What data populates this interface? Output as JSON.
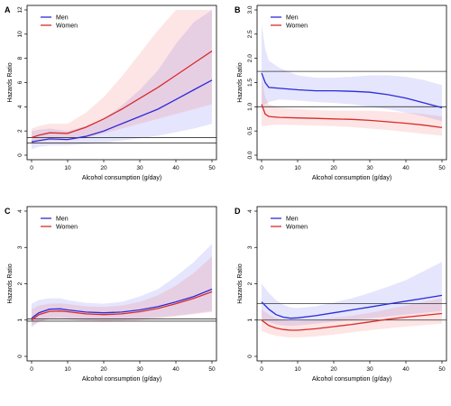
{
  "chart_data": [
    {
      "panel": "A",
      "type": "line",
      "xlabel": "Alcohol consumption (g/day)",
      "ylabel": "Hazards Ratio",
      "xlim": [
        0,
        50
      ],
      "ylim": [
        0,
        12
      ],
      "xticks": [
        0,
        10,
        20,
        30,
        40,
        50
      ],
      "yticks": [
        0,
        2,
        4,
        6,
        8,
        10,
        12
      ],
      "legend": "top-left",
      "hlines": [
        1.0,
        1.45
      ],
      "series": [
        {
          "name": "Men",
          "color": "#2b2bd9",
          "x": [
            0,
            2,
            5,
            10,
            15,
            20,
            25,
            30,
            35,
            40,
            45,
            50
          ],
          "y": [
            1.1,
            1.2,
            1.35,
            1.3,
            1.55,
            2.0,
            2.6,
            3.2,
            3.8,
            4.6,
            5.4,
            6.2
          ],
          "lower": [
            0.5,
            0.7,
            0.8,
            0.8,
            0.9,
            1.0,
            1.2,
            1.4,
            1.6,
            1.9,
            2.2,
            2.6
          ],
          "upper": [
            2.0,
            2.1,
            2.2,
            2.0,
            2.4,
            3.0,
            4.1,
            5.4,
            7.0,
            9.2,
            11.0,
            12.0
          ]
        },
        {
          "name": "Women",
          "color": "#d92b2b",
          "x": [
            0,
            2,
            5,
            10,
            15,
            20,
            25,
            30,
            35,
            40,
            45,
            50
          ],
          "y": [
            1.45,
            1.65,
            1.85,
            1.8,
            2.3,
            3.0,
            3.8,
            4.7,
            5.6,
            6.6,
            7.6,
            8.6
          ],
          "lower": [
            0.9,
            1.1,
            1.2,
            1.2,
            1.4,
            1.8,
            2.2,
            2.6,
            3.0,
            3.4,
            3.8,
            4.2
          ],
          "upper": [
            2.2,
            2.4,
            2.6,
            2.6,
            3.5,
            4.8,
            6.5,
            8.4,
            10.3,
            12.0,
            12.0,
            12.0
          ]
        }
      ]
    },
    {
      "panel": "B",
      "type": "line",
      "xlabel": "Alcohol consumption (g/day)",
      "ylabel": "Hazards Ratio",
      "xlim": [
        0,
        50
      ],
      "ylim": [
        0.0,
        3.0
      ],
      "xticks": [
        0,
        10,
        20,
        30,
        40,
        50
      ],
      "yticks": [
        0.0,
        0.5,
        1.0,
        1.5,
        2.0,
        2.5,
        3.0
      ],
      "legend": "top-right",
      "hlines": [
        1.0,
        1.73
      ],
      "series": [
        {
          "name": "Men",
          "color": "#2b2bd9",
          "x": [
            0,
            1,
            2,
            5,
            10,
            15,
            20,
            25,
            30,
            35,
            40,
            45,
            50
          ],
          "y": [
            1.7,
            1.5,
            1.4,
            1.38,
            1.35,
            1.33,
            1.33,
            1.32,
            1.3,
            1.25,
            1.18,
            1.08,
            0.98
          ],
          "lower": [
            1.0,
            1.05,
            1.1,
            1.15,
            1.13,
            1.1,
            1.08,
            1.05,
            1.0,
            0.95,
            0.88,
            0.8,
            0.7
          ],
          "upper": [
            2.7,
            2.2,
            1.95,
            1.8,
            1.65,
            1.6,
            1.6,
            1.62,
            1.65,
            1.65,
            1.62,
            1.55,
            1.45
          ]
        },
        {
          "name": "Women",
          "color": "#d92b2b",
          "x": [
            0,
            1,
            2,
            5,
            10,
            15,
            20,
            25,
            30,
            35,
            40,
            45,
            50
          ],
          "y": [
            1.05,
            0.85,
            0.8,
            0.78,
            0.77,
            0.76,
            0.75,
            0.74,
            0.72,
            0.69,
            0.66,
            0.62,
            0.57
          ],
          "lower": [
            0.6,
            0.6,
            0.62,
            0.63,
            0.62,
            0.61,
            0.6,
            0.58,
            0.55,
            0.52,
            0.48,
            0.44,
            0.4
          ],
          "upper": [
            1.6,
            1.2,
            1.05,
            0.98,
            0.95,
            0.93,
            0.92,
            0.92,
            0.92,
            0.9,
            0.88,
            0.85,
            0.8
          ]
        }
      ]
    },
    {
      "panel": "C",
      "type": "line",
      "xlabel": "Alcohol consumption (g/day)",
      "ylabel": "Hazards Ratio",
      "xlim": [
        0,
        50
      ],
      "ylim": [
        0,
        4
      ],
      "xticks": [
        0,
        10,
        20,
        30,
        40,
        50
      ],
      "yticks": [
        0,
        1,
        2,
        3,
        4
      ],
      "legend": "top-left",
      "hlines": [
        0.97,
        1.03
      ],
      "series": [
        {
          "name": "Men",
          "color": "#2b2bd9",
          "x": [
            0,
            2,
            5,
            8,
            10,
            15,
            20,
            25,
            30,
            35,
            40,
            45,
            50
          ],
          "y": [
            1.05,
            1.2,
            1.3,
            1.31,
            1.28,
            1.22,
            1.2,
            1.22,
            1.28,
            1.37,
            1.5,
            1.65,
            1.85
          ],
          "lower": [
            0.8,
            0.95,
            1.05,
            1.06,
            1.04,
            1.0,
            0.98,
            0.99,
            1.02,
            1.07,
            1.12,
            1.18,
            1.25
          ],
          "upper": [
            1.45,
            1.55,
            1.6,
            1.6,
            1.55,
            1.47,
            1.45,
            1.5,
            1.65,
            1.85,
            2.2,
            2.6,
            3.1
          ]
        },
        {
          "name": "Women",
          "color": "#d92b2b",
          "x": [
            0,
            2,
            5,
            8,
            10,
            15,
            20,
            25,
            30,
            35,
            40,
            45,
            50
          ],
          "y": [
            1.0,
            1.15,
            1.24,
            1.25,
            1.23,
            1.17,
            1.15,
            1.17,
            1.23,
            1.32,
            1.45,
            1.6,
            1.78
          ],
          "lower": [
            0.85,
            0.95,
            1.02,
            1.03,
            1.01,
            0.97,
            0.95,
            0.96,
            0.99,
            1.04,
            1.1,
            1.16,
            1.22
          ],
          "upper": [
            1.3,
            1.4,
            1.45,
            1.46,
            1.44,
            1.38,
            1.36,
            1.4,
            1.5,
            1.68,
            1.95,
            2.3,
            2.75
          ]
        }
      ]
    },
    {
      "panel": "D",
      "type": "line",
      "xlabel": "Alcohol consumption (g/day)",
      "ylabel": "Hazards Ratio",
      "xlim": [
        0,
        50
      ],
      "ylim": [
        0,
        4
      ],
      "xticks": [
        0,
        10,
        20,
        30,
        40,
        50
      ],
      "yticks": [
        0,
        1,
        2,
        3,
        4
      ],
      "legend": "top-right",
      "hlines": [
        1.0,
        1.45
      ],
      "series": [
        {
          "name": "Men",
          "color": "#2b2bd9",
          "x": [
            0,
            2,
            4,
            6,
            8,
            10,
            15,
            20,
            25,
            30,
            35,
            40,
            45,
            50
          ],
          "y": [
            1.5,
            1.3,
            1.15,
            1.08,
            1.05,
            1.06,
            1.12,
            1.2,
            1.28,
            1.36,
            1.44,
            1.52,
            1.6,
            1.68
          ],
          "lower": [
            1.0,
            0.95,
            0.88,
            0.85,
            0.84,
            0.85,
            0.9,
            0.95,
            1.0,
            1.05,
            1.1,
            1.15,
            1.2,
            1.25
          ],
          "upper": [
            2.0,
            1.75,
            1.55,
            1.42,
            1.35,
            1.33,
            1.38,
            1.48,
            1.6,
            1.75,
            1.92,
            2.1,
            2.35,
            2.6
          ]
        },
        {
          "name": "Women",
          "color": "#d92b2b",
          "x": [
            0,
            2,
            4,
            6,
            8,
            10,
            15,
            20,
            25,
            30,
            35,
            40,
            45,
            50
          ],
          "y": [
            1.0,
            0.85,
            0.78,
            0.74,
            0.72,
            0.72,
            0.76,
            0.82,
            0.88,
            0.95,
            1.02,
            1.08,
            1.13,
            1.18
          ],
          "lower": [
            0.7,
            0.62,
            0.57,
            0.54,
            0.52,
            0.52,
            0.55,
            0.6,
            0.66,
            0.72,
            0.77,
            0.82,
            0.86,
            0.9
          ],
          "upper": [
            1.3,
            1.15,
            1.05,
            1.0,
            0.98,
            0.98,
            1.0,
            1.06,
            1.12,
            1.2,
            1.3,
            1.4,
            1.5,
            1.6
          ]
        }
      ]
    }
  ]
}
